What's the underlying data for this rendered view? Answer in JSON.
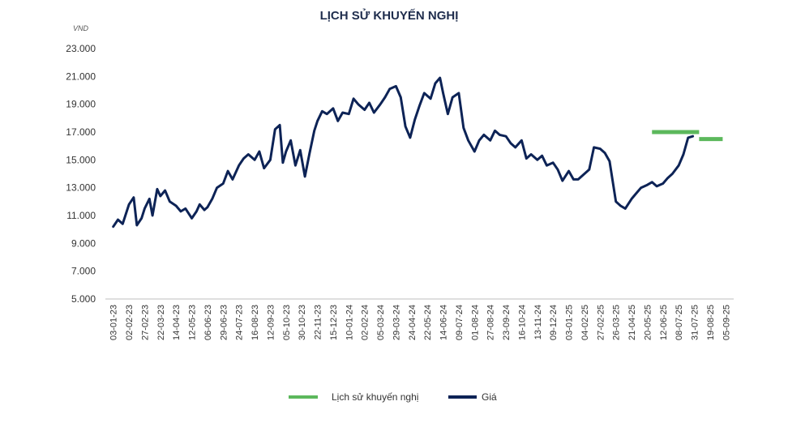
{
  "chart_data": {
    "type": "line",
    "title": "LỊCH SỬ KHUYẾN NGHỊ",
    "ylabel": "VND",
    "xlabel": "",
    "ylim": [
      5000,
      23000
    ],
    "yticks": [
      "5.000",
      "7.000",
      "9.000",
      "11.000",
      "13.000",
      "15.000",
      "17.000",
      "19.000",
      "21.000",
      "23.000"
    ],
    "ytick_values": [
      5000,
      7000,
      9000,
      11000,
      13000,
      15000,
      17000,
      19000,
      21000,
      23000
    ],
    "xticks": [
      "03-01-23",
      "02-02-23",
      "27-02-23",
      "22-03-23",
      "14-04-23",
      "12-05-23",
      "06-06-23",
      "29-06-23",
      "24-07-23",
      "16-08-23",
      "12-09-23",
      "05-10-23",
      "30-10-23",
      "22-11-23",
      "15-12-23",
      "10-01-24",
      "02-02-24",
      "05-03-24",
      "29-03-24",
      "24-04-24",
      "22-05-24",
      "14-06-24",
      "09-07-24",
      "01-08-24",
      "27-08-24",
      "23-09-24",
      "16-10-24",
      "13-11-24",
      "09-12-24",
      "03-01-25",
      "04-02-25",
      "27-02-25",
      "26-03-25",
      "21-04-25",
      "20-05-25",
      "12-06-25",
      "08-07-25",
      "31-07-25",
      "19-08-25",
      "05-09-25"
    ],
    "grid": false,
    "legend_position": "bottom",
    "series": [
      {
        "name": "Lịch sử khuyến nghị",
        "color": "#5cb85c",
        "segments": [
          {
            "x_start": 34.3,
            "x_end": 37.3,
            "value": 17000
          },
          {
            "x_start": 37.3,
            "x_end": 38.8,
            "value": 16500
          }
        ]
      },
      {
        "name": "Giá",
        "color": "#0d2356",
        "points": [
          [
            0,
            10200
          ],
          [
            0.3,
            10700
          ],
          [
            0.6,
            10400
          ],
          [
            1,
            11800
          ],
          [
            1.3,
            12300
          ],
          [
            1.5,
            10300
          ],
          [
            1.8,
            10800
          ],
          [
            2,
            11500
          ],
          [
            2.3,
            12200
          ],
          [
            2.5,
            11000
          ],
          [
            2.8,
            12900
          ],
          [
            3,
            12400
          ],
          [
            3.3,
            12800
          ],
          [
            3.6,
            12000
          ],
          [
            4,
            11700
          ],
          [
            4.3,
            11300
          ],
          [
            4.6,
            11500
          ],
          [
            5,
            10800
          ],
          [
            5.3,
            11300
          ],
          [
            5.5,
            11800
          ],
          [
            5.8,
            11400
          ],
          [
            6,
            11600
          ],
          [
            6.3,
            12200
          ],
          [
            6.6,
            13000
          ],
          [
            7,
            13300
          ],
          [
            7.3,
            14200
          ],
          [
            7.6,
            13600
          ],
          [
            8,
            14600
          ],
          [
            8.3,
            15100
          ],
          [
            8.6,
            15400
          ],
          [
            9,
            15000
          ],
          [
            9.3,
            15600
          ],
          [
            9.6,
            14400
          ],
          [
            10,
            15000
          ],
          [
            10.3,
            17200
          ],
          [
            10.6,
            17500
          ],
          [
            10.8,
            14800
          ],
          [
            11,
            15600
          ],
          [
            11.3,
            16400
          ],
          [
            11.6,
            14600
          ],
          [
            11.9,
            15700
          ],
          [
            12.2,
            13800
          ],
          [
            12.5,
            15500
          ],
          [
            12.8,
            17100
          ],
          [
            13,
            17800
          ],
          [
            13.3,
            18500
          ],
          [
            13.6,
            18300
          ],
          [
            14,
            18700
          ],
          [
            14.3,
            17800
          ],
          [
            14.6,
            18400
          ],
          [
            15,
            18300
          ],
          [
            15.3,
            19400
          ],
          [
            15.6,
            19000
          ],
          [
            16,
            18600
          ],
          [
            16.3,
            19100
          ],
          [
            16.6,
            18400
          ],
          [
            17,
            19000
          ],
          [
            17.3,
            19500
          ],
          [
            17.6,
            20100
          ],
          [
            18,
            20300
          ],
          [
            18.3,
            19500
          ],
          [
            18.6,
            17400
          ],
          [
            18.9,
            16600
          ],
          [
            19.2,
            17900
          ],
          [
            19.5,
            18900
          ],
          [
            19.8,
            19800
          ],
          [
            20.2,
            19400
          ],
          [
            20.5,
            20500
          ],
          [
            20.8,
            20900
          ],
          [
            21,
            19800
          ],
          [
            21.3,
            18300
          ],
          [
            21.6,
            19500
          ],
          [
            22,
            19800
          ],
          [
            22.3,
            17300
          ],
          [
            22.6,
            16400
          ],
          [
            23,
            15600
          ],
          [
            23.3,
            16400
          ],
          [
            23.6,
            16800
          ],
          [
            24,
            16400
          ],
          [
            24.3,
            17100
          ],
          [
            24.6,
            16800
          ],
          [
            25,
            16700
          ],
          [
            25.3,
            16200
          ],
          [
            25.6,
            15900
          ],
          [
            26,
            16400
          ],
          [
            26.3,
            15100
          ],
          [
            26.6,
            15400
          ],
          [
            27,
            15000
          ],
          [
            27.3,
            15300
          ],
          [
            27.6,
            14600
          ],
          [
            28,
            14800
          ],
          [
            28.3,
            14300
          ],
          [
            28.6,
            13500
          ],
          [
            29,
            14200
          ],
          [
            29.3,
            13600
          ],
          [
            29.6,
            13600
          ],
          [
            30,
            14000
          ],
          [
            30.3,
            14300
          ],
          [
            30.6,
            15900
          ],
          [
            31,
            15800
          ],
          [
            31.3,
            15500
          ],
          [
            31.6,
            14900
          ],
          [
            32,
            12000
          ],
          [
            32.3,
            11700
          ],
          [
            32.6,
            11500
          ],
          [
            33,
            12200
          ],
          [
            33.3,
            12600
          ],
          [
            33.6,
            13000
          ],
          [
            34,
            13200
          ],
          [
            34.3,
            13400
          ],
          [
            34.6,
            13100
          ],
          [
            35,
            13300
          ],
          [
            35.3,
            13700
          ],
          [
            35.6,
            14000
          ],
          [
            36,
            14600
          ],
          [
            36.3,
            15400
          ],
          [
            36.6,
            16600
          ],
          [
            36.9,
            16700
          ]
        ]
      }
    ]
  }
}
